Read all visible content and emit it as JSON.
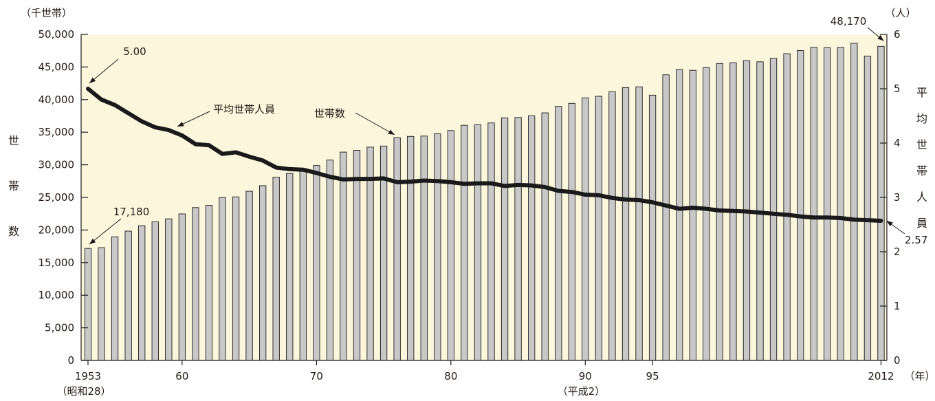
{
  "colors": {
    "plot_background": "#FBF6DC",
    "bar_fill": "#C8C8C8",
    "bar_stroke": "#1A1A1A",
    "line": "#1A1A1A",
    "text": "#231815"
  },
  "chart_data": {
    "type": "bar",
    "title": "",
    "x": [
      1953,
      1954,
      1955,
      1956,
      1957,
      1958,
      1959,
      1960,
      1961,
      1962,
      1963,
      1964,
      1965,
      1966,
      1967,
      1968,
      1969,
      1970,
      1971,
      1972,
      1973,
      1974,
      1975,
      1976,
      1977,
      1978,
      1979,
      1980,
      1981,
      1982,
      1983,
      1984,
      1985,
      1986,
      1987,
      1988,
      1989,
      1990,
      1991,
      1992,
      1993,
      1994,
      1995,
      1996,
      1997,
      1998,
      1999,
      2000,
      2001,
      2002,
      2003,
      2004,
      2005,
      2006,
      2007,
      2008,
      2009,
      2010,
      2011,
      2012
    ],
    "series": [
      {
        "name": "世帯数",
        "type": "bar",
        "axis": "left",
        "values": [
          17180,
          17300,
          18960,
          19830,
          20660,
          21260,
          21710,
          22470,
          23440,
          23780,
          24990,
          25080,
          25940,
          26800,
          28110,
          28670,
          29440,
          29890,
          30730,
          31950,
          32230,
          32710,
          32880,
          34170,
          34360,
          34410,
          34760,
          35250,
          36060,
          36160,
          36420,
          37200,
          37250,
          37520,
          37970,
          38960,
          39420,
          40270,
          40510,
          41210,
          41830,
          41960,
          40680,
          43800,
          44620,
          44500,
          44920,
          45540,
          45660,
          45980,
          45800,
          46330,
          47040,
          47530,
          48020,
          47960,
          48010,
          48640,
          46680,
          48170
        ]
      },
      {
        "name": "平均世帯人員",
        "type": "line",
        "axis": "right",
        "values": [
          5.0,
          4.8,
          4.7,
          4.55,
          4.4,
          4.29,
          4.24,
          4.14,
          3.98,
          3.96,
          3.8,
          3.83,
          3.75,
          3.68,
          3.55,
          3.52,
          3.51,
          3.45,
          3.38,
          3.33,
          3.34,
          3.34,
          3.35,
          3.28,
          3.29,
          3.31,
          3.3,
          3.28,
          3.25,
          3.26,
          3.26,
          3.21,
          3.23,
          3.22,
          3.19,
          3.12,
          3.1,
          3.05,
          3.04,
          2.99,
          2.96,
          2.95,
          2.91,
          2.85,
          2.79,
          2.81,
          2.79,
          2.76,
          2.75,
          2.74,
          2.72,
          2.7,
          2.68,
          2.65,
          2.63,
          2.63,
          2.62,
          2.59,
          2.58,
          2.57
        ]
      }
    ],
    "y_left": {
      "range": [
        0,
        50000
      ],
      "ticks": [
        0,
        5000,
        10000,
        15000,
        20000,
        25000,
        30000,
        35000,
        40000,
        45000,
        50000
      ],
      "tick_labels": [
        "0",
        "5,000",
        "10,000",
        "15,000",
        "20,000",
        "25,000",
        "30,000",
        "35,000",
        "40,000",
        "45,000",
        "50,000"
      ],
      "unit": "（千世帯）",
      "label": [
        "世",
        "帯",
        "数"
      ]
    },
    "y_right": {
      "range": [
        0,
        6
      ],
      "ticks": [
        0,
        1,
        2,
        3,
        4,
        5,
        6
      ],
      "tick_labels": [
        "0",
        "1",
        "2",
        "3",
        "4",
        "5",
        "6"
      ],
      "unit": "（人）",
      "label": [
        "平",
        "均",
        "世",
        "帯",
        "人",
        "員"
      ]
    },
    "x_axis": {
      "tick_years": [
        1953,
        1960,
        1970,
        1980,
        1990,
        1995,
        2012
      ],
      "tick_labels": [
        "1953",
        "60",
        "70",
        "80",
        "90",
        "95",
        "2012"
      ],
      "sub_labels": [
        {
          "year": 1953,
          "text": "（昭和28）"
        },
        {
          "year": 1990,
          "text": "（平成2）"
        }
      ],
      "unit": "（年）"
    },
    "annotations": {
      "line_start": "5.00",
      "line_end": "2.57",
      "bar_start": "17,180",
      "bar_end": "48,170",
      "line_series_label": "平均世帯人員",
      "bar_series_label": "世帯数"
    },
    "grid": false,
    "legend": "none"
  }
}
